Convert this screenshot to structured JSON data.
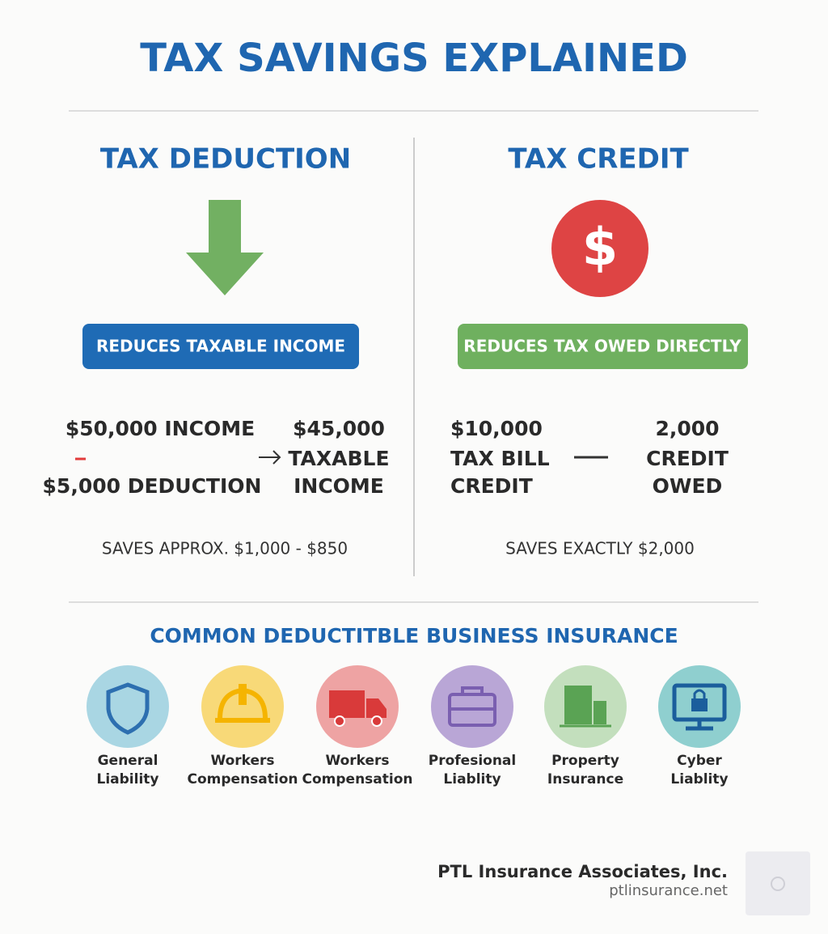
{
  "header": {
    "title": "TAX SAVINGS EXPLAINED"
  },
  "deduction": {
    "heading": "TAX DEDUCTION",
    "badge": "REDUCES TAXABLE INCOME",
    "left_lines": [
      "$50,000 INCOME",
      "$5,000 DEDUCTION"
    ],
    "right_lines": [
      "$45,000",
      "TAXABLE",
      "INCOME"
    ],
    "savings": "SAVES APPROX. $1,000 - $850"
  },
  "credit": {
    "heading": "TAX CREDIT",
    "badge": "REDUCES TAX OWED DIRECTLY",
    "left_lines": [
      "$10,000",
      "TAX BILL",
      "CREDIT"
    ],
    "right_lines": [
      "2,000",
      "CREDIT",
      "OWED"
    ],
    "savings": "SAVES EXACTLY $2,000"
  },
  "insurance": {
    "heading": "COMMON DEDUCTITBLE BUSINESS INSURANCE",
    "items": [
      [
        "General",
        "Liability"
      ],
      [
        "Workers",
        "Compensation"
      ],
      [
        "Workers",
        "Compensation"
      ],
      [
        "Profesional",
        "Liablity"
      ],
      [
        "Property",
        "Insurance"
      ],
      [
        "Cyber",
        "Liablity"
      ]
    ]
  },
  "footer": {
    "company": "PTL Insurance Associates, Inc.",
    "website": "ptlinsurance.net"
  }
}
